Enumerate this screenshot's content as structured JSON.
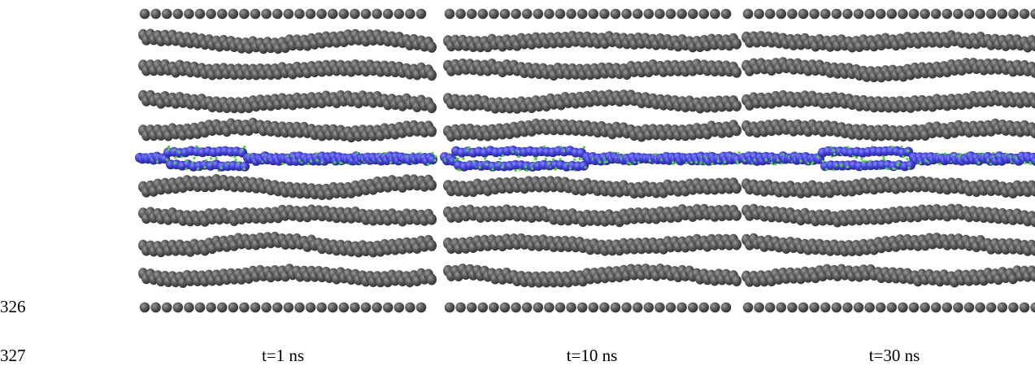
{
  "line_numbers": [
    326,
    327
  ],
  "panels": [
    {
      "caption": "t=1 ns"
    },
    {
      "caption": "t=10 ns"
    },
    {
      "caption": "t=30 ns"
    }
  ]
}
